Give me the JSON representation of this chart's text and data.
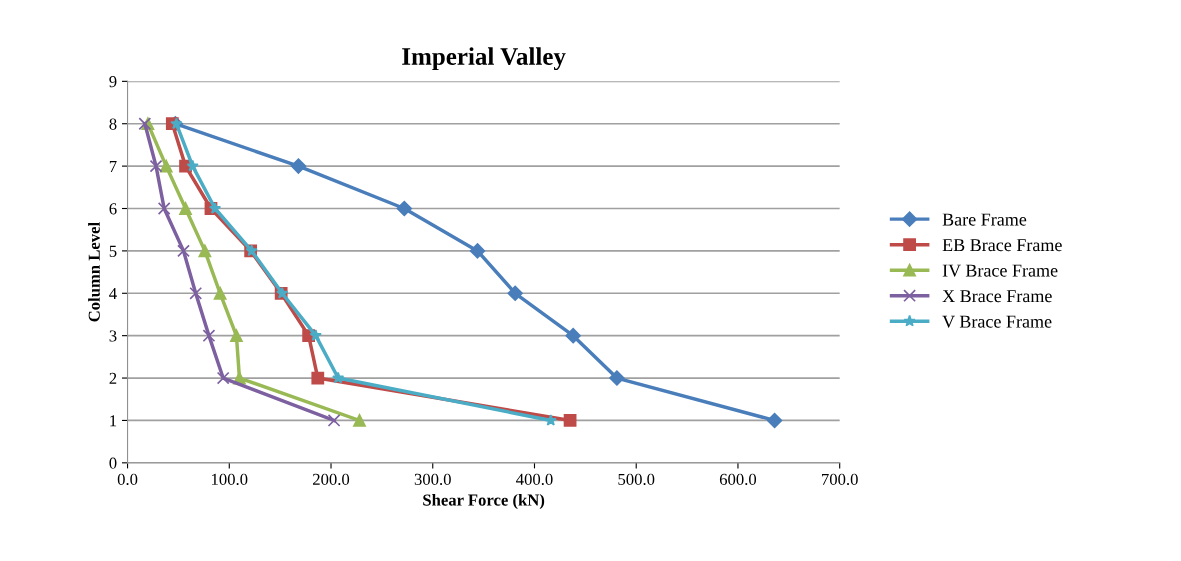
{
  "chart_data": {
    "type": "line",
    "title": "Imperial Valley",
    "xlabel": "Shear Force (kN)",
    "ylabel": "Column Level",
    "xlim": [
      0,
      700
    ],
    "xticks": [
      {
        "value": 0,
        "label": "0.0"
      },
      {
        "value": 100,
        "label": "100.0"
      },
      {
        "value": 200,
        "label": "200.0"
      },
      {
        "value": 300,
        "label": "300.0"
      },
      {
        "value": 400,
        "label": "400.0"
      },
      {
        "value": 500,
        "label": "500.0"
      },
      {
        "value": 600,
        "label": "600.0"
      },
      {
        "value": 700,
        "label": "700.0"
      }
    ],
    "ylim": [
      0,
      9
    ],
    "yticks": [
      0,
      1,
      2,
      3,
      4,
      5,
      6,
      7,
      8,
      9
    ],
    "grid": "y",
    "legend": "right",
    "line_style": "solid",
    "series": [
      {
        "name": "Bare Frame",
        "color": "#4a7ebb",
        "marker": "diamond",
        "x": [
          636,
          481,
          438,
          381,
          344,
          272,
          168,
          47
        ],
        "values": [
          1,
          2,
          3,
          4,
          5,
          6,
          7,
          8
        ]
      },
      {
        "name": "EB Brace Frame",
        "color": "#be4b48",
        "marker": "square",
        "x": [
          435,
          187,
          178,
          151,
          121,
          82,
          57,
          44
        ],
        "values": [
          1,
          2,
          3,
          4,
          5,
          6,
          7,
          8
        ]
      },
      {
        "name": "IV Brace Frame",
        "color": "#98b954",
        "marker": "triangle",
        "x": [
          228,
          110,
          107,
          91,
          76,
          57,
          38,
          20
        ],
        "values": [
          1,
          2,
          3,
          4,
          5,
          6,
          7,
          8
        ]
      },
      {
        "name": "X Brace Frame",
        "color": "#7d60a0",
        "marker": "cross",
        "x": [
          203,
          94,
          80,
          67,
          55,
          36,
          28,
          17
        ],
        "values": [
          1,
          2,
          3,
          4,
          5,
          6,
          7,
          8
        ]
      },
      {
        "name": "V Brace Frame",
        "color": "#4bacc6",
        "marker": "star",
        "x": [
          416,
          207,
          185,
          152,
          122,
          86,
          64,
          48
        ],
        "values": [
          1,
          2,
          3,
          4,
          5,
          6,
          7,
          8
        ]
      }
    ]
  }
}
